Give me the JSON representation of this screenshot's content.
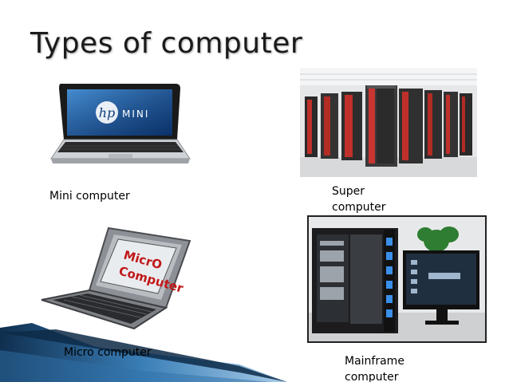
{
  "slide": {
    "title": "Types of computer",
    "items": [
      {
        "key": "mini",
        "caption": "Mini computer"
      },
      {
        "key": "super",
        "caption_lines": [
          "Super",
          "computer"
        ]
      },
      {
        "key": "micro",
        "caption": "Micro computer",
        "screen_text": [
          "MicrO",
          "Computer"
        ]
      },
      {
        "key": "mainframe",
        "caption_lines": [
          "Mainframe",
          "computer"
        ]
      }
    ],
    "laptop_logo": {
      "brand": "hp",
      "model": "MINI"
    }
  },
  "colors": {
    "deco_dark": "#0f2f4f",
    "deco_mid": "#3a7fb8",
    "deco_light": "#a9cde8",
    "server_red": "#c0302a"
  }
}
